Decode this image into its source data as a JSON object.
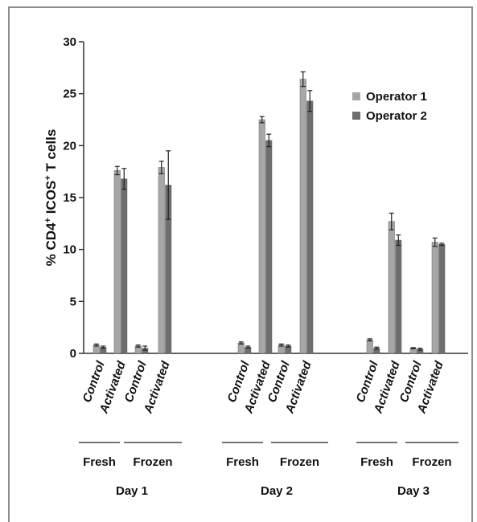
{
  "chart_data": {
    "type": "bar",
    "ylabel_parts": [
      "% CD4",
      "+",
      " ICOS",
      "+",
      " T cells"
    ],
    "ylim": [
      0,
      30
    ],
    "yticks": [
      0,
      5,
      10,
      15,
      20,
      25,
      30
    ],
    "ytick_labels": [
      "0",
      "5",
      "10",
      "15",
      "20",
      "25",
      "30"
    ],
    "legend": {
      "position": "top-right"
    },
    "series": [
      {
        "name": "Operator 1",
        "color": "#a6a6a6"
      },
      {
        "name": "Operator 2",
        "color": "#6e6e6e"
      }
    ],
    "categories": [
      {
        "label": "Control",
        "sample": "Fresh",
        "day": "Day 1",
        "values": [
          0.8,
          0.6
        ],
        "errors": [
          0.1,
          0.1
        ]
      },
      {
        "label": "Activated",
        "sample": "Fresh",
        "day": "Day 1",
        "values": [
          17.6,
          16.8
        ],
        "errors": [
          0.4,
          1.0
        ]
      },
      {
        "label": "Control",
        "sample": "Frozen",
        "day": "Day 1",
        "values": [
          0.7,
          0.5
        ],
        "errors": [
          0.1,
          0.2
        ]
      },
      {
        "label": "Activated",
        "sample": "Frozen",
        "day": "Day 1",
        "values": [
          17.9,
          16.2
        ],
        "errors": [
          0.6,
          3.3
        ]
      },
      {
        "label": "Control",
        "sample": "Fresh",
        "day": "Day 2",
        "values": [
          1.0,
          0.6
        ],
        "errors": [
          0.1,
          0.1
        ]
      },
      {
        "label": "Activated",
        "sample": "Fresh",
        "day": "Day 2",
        "values": [
          22.5,
          20.5
        ],
        "errors": [
          0.3,
          0.6
        ]
      },
      {
        "label": "Control",
        "sample": "Frozen",
        "day": "Day 2",
        "values": [
          0.8,
          0.7
        ],
        "errors": [
          0.1,
          0.1
        ]
      },
      {
        "label": "Activated",
        "sample": "Frozen",
        "day": "Day 2",
        "values": [
          26.4,
          24.3
        ],
        "errors": [
          0.7,
          1.0
        ]
      },
      {
        "label": "Control",
        "sample": "Fresh",
        "day": "Day 3",
        "values": [
          1.3,
          0.5
        ],
        "errors": [
          0.1,
          0.1
        ]
      },
      {
        "label": "Activated",
        "sample": "Fresh",
        "day": "Day 3",
        "values": [
          12.7,
          10.9
        ],
        "errors": [
          0.8,
          0.5
        ]
      },
      {
        "label": "Control",
        "sample": "Frozen",
        "day": "Day 3",
        "values": [
          0.5,
          0.4
        ],
        "errors": [
          0.05,
          0.1
        ]
      },
      {
        "label": "Activated",
        "sample": "Frozen",
        "day": "Day 3",
        "values": [
          10.7,
          10.5
        ],
        "errors": [
          0.4,
          0.1
        ]
      }
    ],
    "sample_groups": [
      {
        "label": "Fresh",
        "day": "Day 1"
      },
      {
        "label": "Frozen",
        "day": "Day 1"
      },
      {
        "label": "Fresh",
        "day": "Day 2"
      },
      {
        "label": "Frozen",
        "day": "Day 2"
      },
      {
        "label": "Fresh",
        "day": "Day 3"
      },
      {
        "label": "Frozen",
        "day": "Day 3"
      }
    ],
    "days": [
      "Day 1",
      "Day 2",
      "Day 3"
    ]
  }
}
